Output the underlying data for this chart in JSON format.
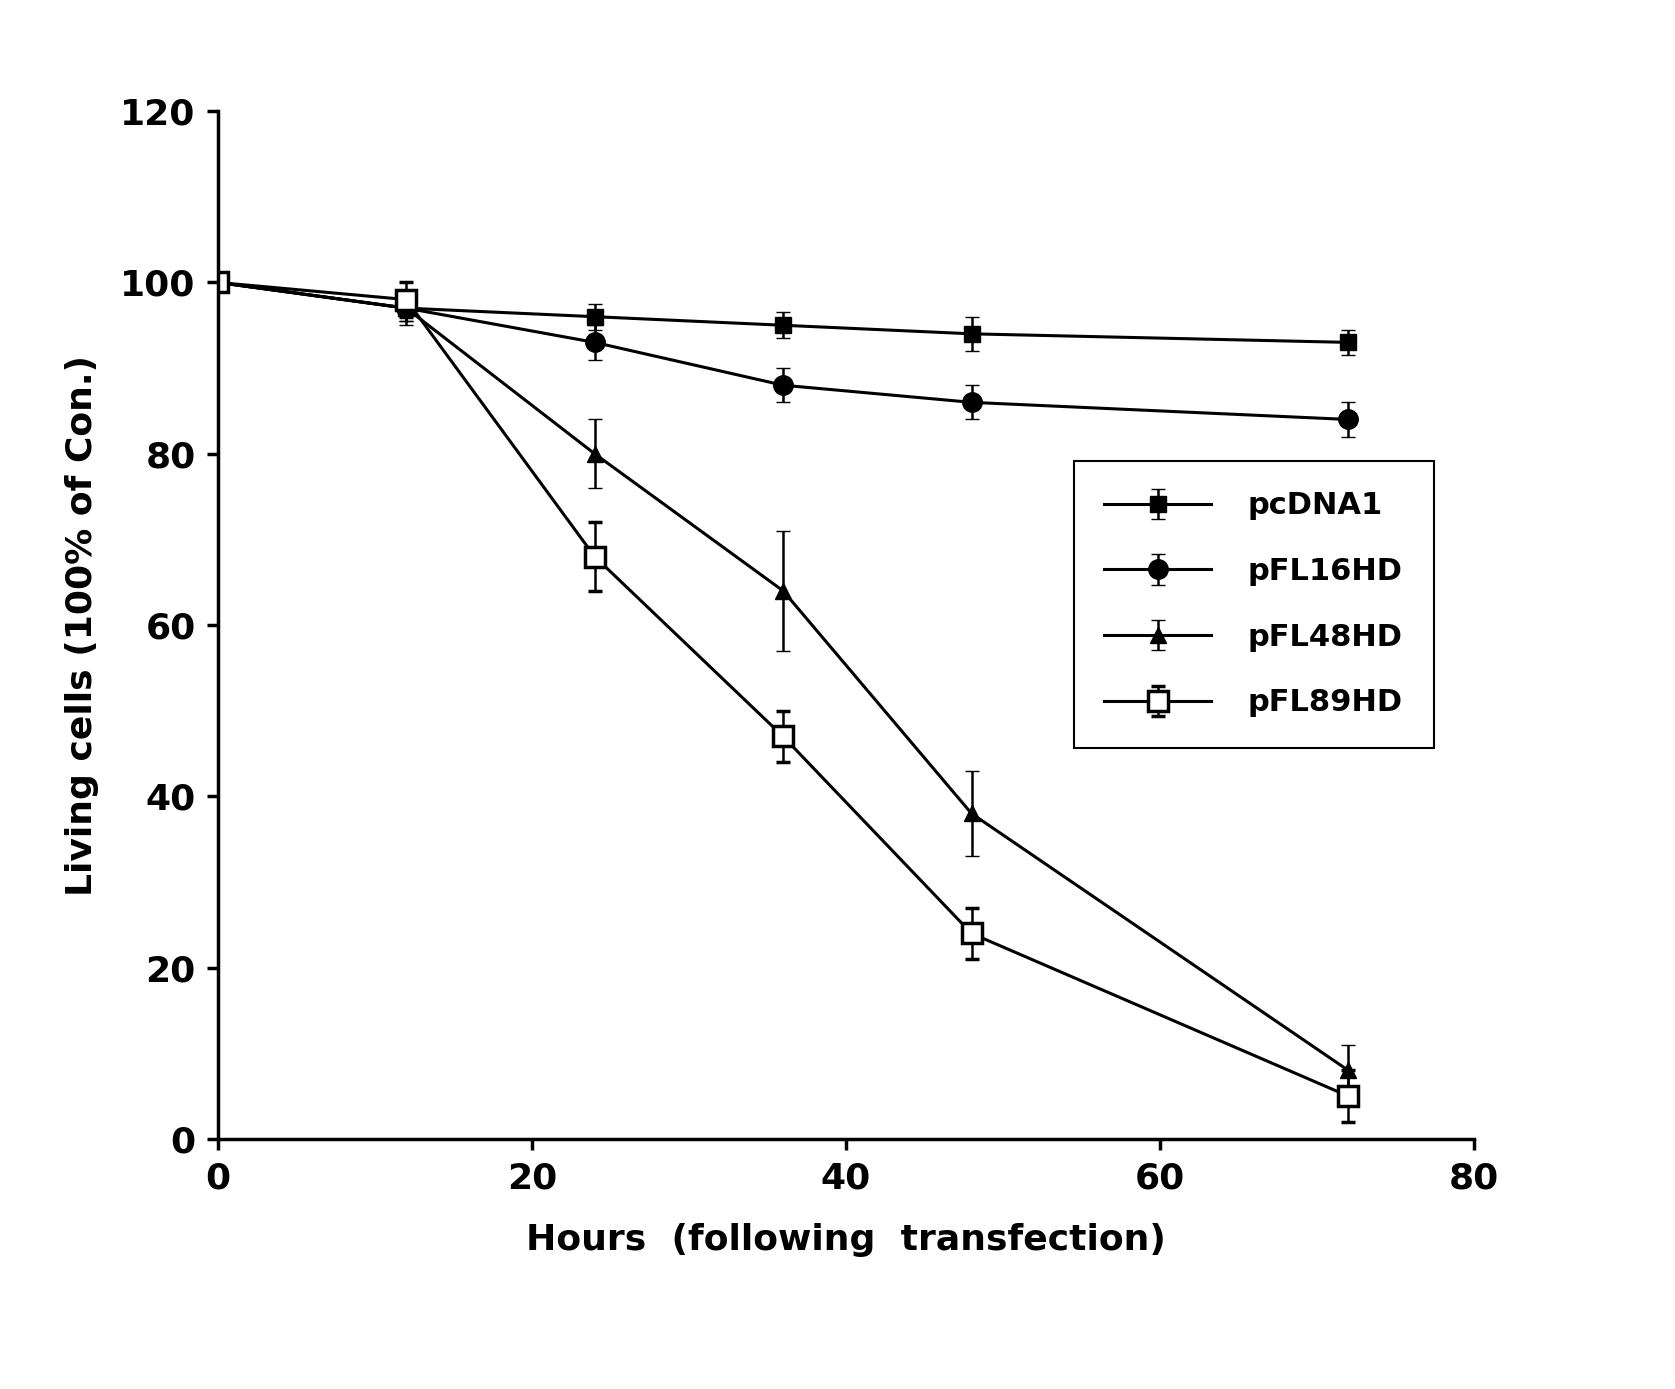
{
  "x": [
    0,
    12,
    24,
    36,
    48,
    72
  ],
  "pcDNA1_y": [
    100,
    97,
    96,
    95,
    94,
    93
  ],
  "pcDNA1_err": [
    1.0,
    1.5,
    1.5,
    1.5,
    2.0,
    1.5
  ],
  "pFL16HD_y": [
    100,
    97,
    93,
    88,
    86,
    84
  ],
  "pFL16HD_err": [
    1.0,
    1.5,
    2.0,
    2.0,
    2.0,
    2.0
  ],
  "pFL48HD_y": [
    100,
    97,
    80,
    64,
    38,
    8
  ],
  "pFL48HD_err": [
    1.0,
    2.0,
    4.0,
    7.0,
    5.0,
    3.0
  ],
  "pFL89HD_y": [
    100,
    98,
    68,
    47,
    24,
    5
  ],
  "pFL89HD_err": [
    1.0,
    2.0,
    4.0,
    3.0,
    3.0,
    3.0
  ],
  "xlim": [
    0,
    80
  ],
  "ylim": [
    0,
    120
  ],
  "xticks": [
    0,
    20,
    40,
    60,
    80
  ],
  "yticks": [
    0,
    20,
    40,
    60,
    80,
    100,
    120
  ],
  "xlabel": "Hours  (following  transfection)",
  "ylabel": "Living cells (100% of Con.)",
  "legend_labels": [
    "pcDNA1",
    "pFL16HD",
    "pFL48HD",
    "pFL89HD"
  ],
  "background_color": "#ffffff",
  "line_color": "#000000",
  "marker_size": 11,
  "linewidth": 2.2,
  "capsize": 5,
  "elinewidth": 1.8
}
